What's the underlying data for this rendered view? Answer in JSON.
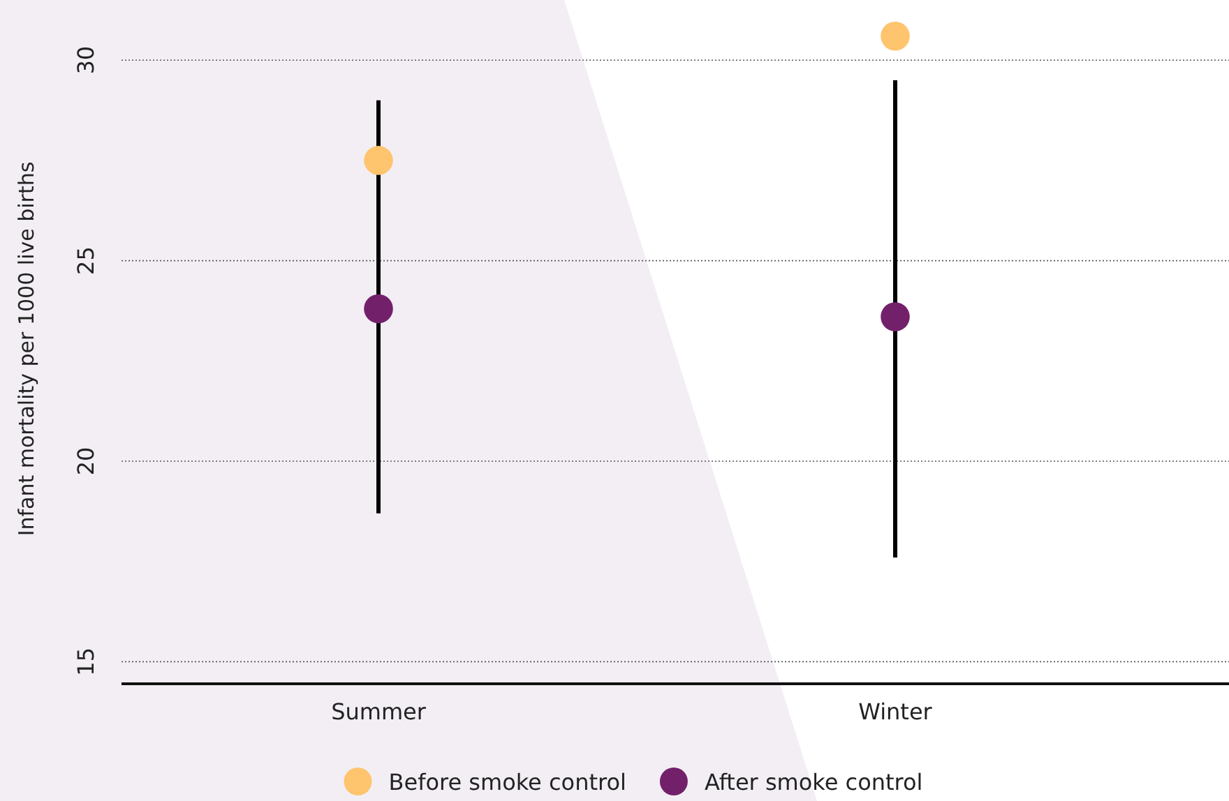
{
  "chart_data": {
    "type": "scatter",
    "ylabel": "Infant mortality per 1000 live births",
    "categories": [
      "Summer",
      "Winter"
    ],
    "series": [
      {
        "name": "Before smoke control",
        "color": "#fec46e",
        "values": [
          27.5,
          30.6
        ]
      },
      {
        "name": "After smoke control",
        "color": "#73206b",
        "values": [
          23.8,
          23.6
        ],
        "errors": [
          [
            18.7,
            29.0
          ],
          [
            17.6,
            29.5
          ]
        ]
      }
    ],
    "ylim": [
      14.45,
      31.5
    ],
    "yticks": [
      15,
      20,
      25,
      30
    ],
    "grid": "y",
    "legend": "bottom",
    "marker": "circle"
  }
}
